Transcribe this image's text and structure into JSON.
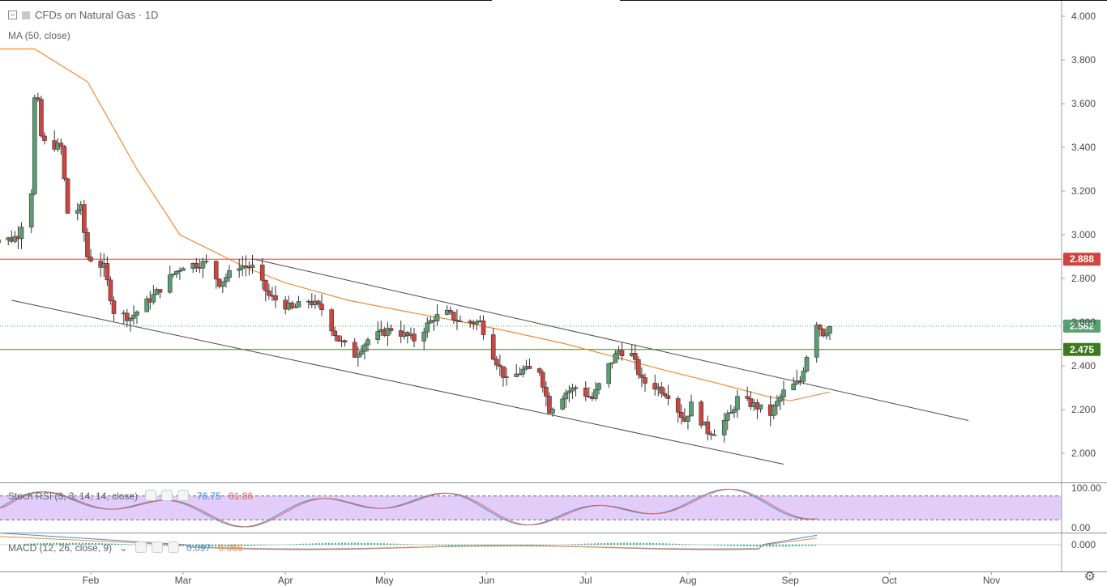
{
  "header": {
    "title": "CFDs on Natural Gas · 1D",
    "ma_label": "MA (50, close)"
  },
  "icons": {
    "collapse": "collapse-box-icon",
    "symbol": "symbol-square-icon",
    "settings": "gear-icon"
  },
  "colors": {
    "up": "#5a9e73",
    "down": "#d0443f",
    "ma": "#f08a35",
    "resistance": "#d0443f",
    "support": "#3f7a1f",
    "last": "#5a9e73",
    "stoch_k": "#3b8fd9",
    "stoch_d": "#e8624f",
    "band": "#e2cdfa",
    "macd": "#3b8fd9",
    "signal": "#f08a35",
    "hist": "#3fb0a6"
  },
  "price_axis": {
    "labels": [
      "4.000",
      "3.800",
      "3.600",
      "3.400",
      "3.200",
      "3.000",
      "2.800",
      "2.600",
      "2.400",
      "2.200",
      "2.000"
    ]
  },
  "time_axis": {
    "labels": [
      "Feb",
      "Mar",
      "Apr",
      "May",
      "Jun",
      "Jul",
      "Aug",
      "Sep",
      "Oct",
      "Nov"
    ]
  },
  "levels": {
    "resistance": "2.888",
    "last": "2.582",
    "support": "2.475"
  },
  "stoch_rsi": {
    "label": "Stoch RSI (3, 3, 14, 14, close)",
    "k_value": "76.75",
    "d_value": "81.86",
    "axis": [
      "100.00",
      "0.00"
    ]
  },
  "macd": {
    "label": "MACD (12, 26, close, 9)",
    "macd_value": "0.097",
    "signal_value": "0.066",
    "axis": [
      "0.000"
    ]
  },
  "chart_data": {
    "type": "candlestick",
    "title": "CFDs on Natural Gas · 1D",
    "interval": "1D",
    "ylim": [
      1.9,
      4.05
    ],
    "x_labels": [
      "Feb",
      "Mar",
      "Apr",
      "May",
      "Jun",
      "Jul",
      "Aug",
      "Sep",
      "Oct",
      "Nov"
    ],
    "ma_period": 50,
    "horizontal_levels": [
      2.888,
      2.582,
      2.475
    ],
    "trendlines": [
      {
        "name": "channel-upper",
        "from": [
          "2019-03-22",
          2.89
        ],
        "to": [
          "2019-10-25",
          2.15
        ]
      },
      {
        "name": "channel-lower",
        "from": [
          "2019-01-08",
          2.7
        ],
        "to": [
          "2019-08-30",
          1.95
        ]
      }
    ],
    "anchors": [
      [
        "2019-01-08",
        2.98
      ],
      [
        "2019-01-10",
        3.0
      ],
      [
        "2019-01-14",
        3.2
      ],
      [
        "2019-01-15",
        3.62
      ],
      [
        "2019-01-16",
        3.6
      ],
      [
        "2019-01-17",
        3.45
      ],
      [
        "2019-01-18",
        3.42
      ],
      [
        "2019-01-23",
        3.4
      ],
      [
        "2019-01-25",
        3.1
      ],
      [
        "2019-01-29",
        3.12
      ],
      [
        "2019-01-31",
        2.9
      ],
      [
        "2019-02-05",
        2.85
      ],
      [
        "2019-02-08",
        2.65
      ],
      [
        "2019-02-13",
        2.62
      ],
      [
        "2019-02-20",
        2.72
      ],
      [
        "2019-02-26",
        2.82
      ],
      [
        "2019-03-01",
        2.86
      ],
      [
        "2019-03-08",
        2.87
      ],
      [
        "2019-03-12",
        2.78
      ],
      [
        "2019-03-18",
        2.86
      ],
      [
        "2019-03-22",
        2.85
      ],
      [
        "2019-03-27",
        2.72
      ],
      [
        "2019-04-03",
        2.66
      ],
      [
        "2019-04-08",
        2.7
      ],
      [
        "2019-04-12",
        2.66
      ],
      [
        "2019-04-17",
        2.52
      ],
      [
        "2019-04-22",
        2.45
      ],
      [
        "2019-04-26",
        2.52
      ],
      [
        "2019-05-03",
        2.57
      ],
      [
        "2019-05-10",
        2.52
      ],
      [
        "2019-05-16",
        2.62
      ],
      [
        "2019-05-20",
        2.64
      ],
      [
        "2019-05-24",
        2.6
      ],
      [
        "2019-05-30",
        2.6
      ],
      [
        "2019-06-03",
        2.45
      ],
      [
        "2019-06-07",
        2.33
      ],
      [
        "2019-06-12",
        2.38
      ],
      [
        "2019-06-17",
        2.38
      ],
      [
        "2019-06-20",
        2.2
      ],
      [
        "2019-06-25",
        2.28
      ],
      [
        "2019-06-28",
        2.3
      ],
      [
        "2019-07-03",
        2.25
      ],
      [
        "2019-07-08",
        2.4
      ],
      [
        "2019-07-11",
        2.47
      ],
      [
        "2019-07-15",
        2.45
      ],
      [
        "2019-07-18",
        2.33
      ],
      [
        "2019-07-23",
        2.3
      ],
      [
        "2019-07-26",
        2.27
      ],
      [
        "2019-07-31",
        2.15
      ],
      [
        "2019-08-02",
        2.22
      ],
      [
        "2019-08-07",
        2.1
      ],
      [
        "2019-08-09",
        2.1
      ],
      [
        "2019-08-14",
        2.18
      ],
      [
        "2019-08-16",
        2.25
      ],
      [
        "2019-08-21",
        2.22
      ],
      [
        "2019-08-26",
        2.18
      ],
      [
        "2019-08-30",
        2.28
      ],
      [
        "2019-09-04",
        2.33
      ],
      [
        "2019-09-06",
        2.45
      ],
      [
        "2019-09-09",
        2.6
      ],
      [
        "2019-09-11",
        2.55
      ],
      [
        "2019-09-13",
        2.58
      ]
    ],
    "series": [
      {
        "name": "MA (50, close)",
        "values": [
          3.85,
          3.85,
          3.7,
          3.3,
          3.0,
          2.85,
          2.78,
          2.7,
          2.65,
          2.6,
          2.55,
          2.5,
          2.44,
          2.38,
          2.32,
          2.26,
          2.24,
          2.28
        ]
      },
      {
        "name": "Stoch RSI K",
        "last": 76.75
      },
      {
        "name": "Stoch RSI D",
        "last": 81.86
      },
      {
        "name": "MACD",
        "last": 0.097
      },
      {
        "name": "Signal",
        "last": 0.066
      }
    ],
    "ma_dates": [
      "2019-01-01",
      "2019-01-15",
      "2019-01-31",
      "2019-02-15",
      "2019-02-28",
      "2019-03-20",
      "2019-04-01",
      "2019-04-20",
      "2019-05-07",
      "2019-05-25",
      "2019-06-10",
      "2019-06-25",
      "2019-07-10",
      "2019-07-25",
      "2019-08-10",
      "2019-08-25",
      "2019-09-01",
      "2019-09-13"
    ]
  }
}
